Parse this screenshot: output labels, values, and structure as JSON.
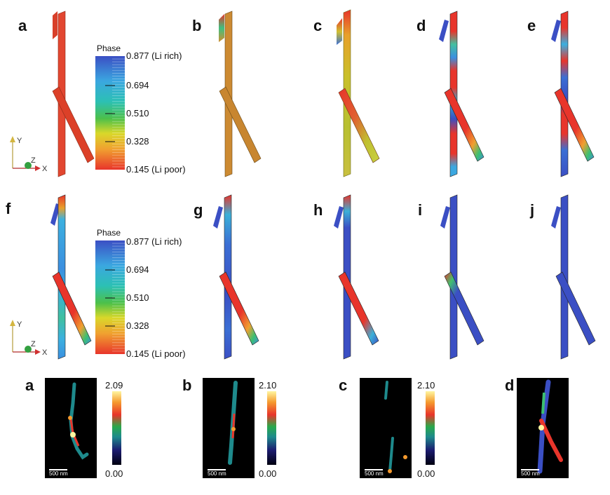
{
  "row1": {
    "panels": [
      "a",
      "b",
      "c",
      "d",
      "e"
    ],
    "colorbar": {
      "title": "Phase",
      "ticks": [
        "0.877 (Li rich)",
        "0.694",
        "0.510",
        "0.328",
        "0.145 (Li poor)"
      ],
      "values": [
        0.877,
        0.694,
        0.51,
        0.328,
        0.145
      ]
    }
  },
  "row2": {
    "panels": [
      "f",
      "g",
      "h",
      "i",
      "j"
    ],
    "colorbar": {
      "title": "Phase",
      "ticks": [
        "0.877 (Li rich)",
        "0.694",
        "0.510",
        "0.328",
        "0.145 (Li poor)"
      ],
      "values": [
        0.877,
        0.694,
        0.51,
        0.328,
        0.145
      ]
    }
  },
  "axes": {
    "y": "Y",
    "z": "Z",
    "x": "X"
  },
  "row3": {
    "panels": [
      {
        "label": "a",
        "max": "2.09",
        "min": "0.00",
        "scale": "500 nm"
      },
      {
        "label": "b",
        "max": "2.10",
        "min": "0.00",
        "scale": "500 nm"
      },
      {
        "label": "c",
        "max": "2.10",
        "min": "0.00",
        "scale": "500 nm"
      },
      {
        "label": "d",
        "scale": "500 nm"
      }
    ]
  },
  "colors": {
    "li_rich": "#3b4fc4",
    "li_poor": "#e8352b",
    "background_dark": "#000000"
  }
}
